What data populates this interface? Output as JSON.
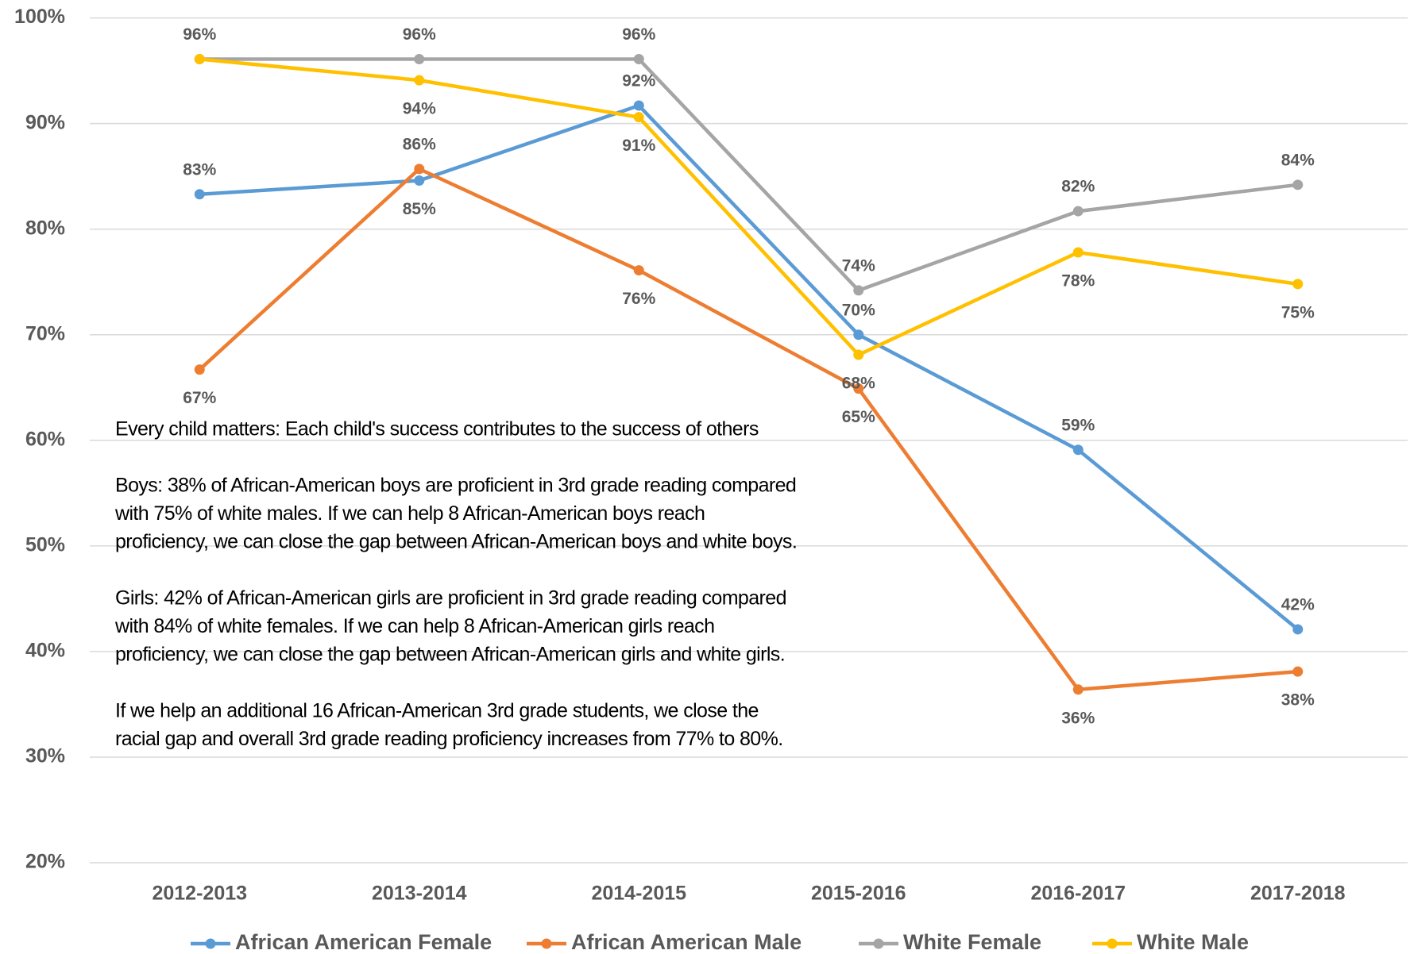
{
  "chart_data": {
    "type": "line",
    "categories": [
      "2012-2013",
      "2013-2014",
      "2014-2015",
      "2015-2016",
      "2016-2017",
      "2017-2018"
    ],
    "series": [
      {
        "name": "African American Female",
        "color": "#5b9bd5",
        "values": [
          83.3,
          84.6,
          91.7,
          70.0,
          59.1,
          42.1
        ],
        "value_labels": [
          "83%",
          "85%",
          "92%",
          "70%",
          "59%",
          "42%"
        ]
      },
      {
        "name": "African American Male",
        "color": "#ed7d31",
        "values": [
          66.7,
          85.7,
          76.1,
          64.9,
          36.4,
          38.1
        ],
        "value_labels": [
          "67%",
          "86%",
          "76%",
          "65%",
          "36%",
          "38%"
        ]
      },
      {
        "name": "White Female",
        "color": "#a5a5a5",
        "values": [
          96.1,
          96.1,
          96.1,
          74.2,
          81.7,
          84.2
        ],
        "value_labels": [
          "96%",
          "96%",
          "96%",
          "74%",
          "82%",
          "84%"
        ]
      },
      {
        "name": "White Male",
        "color": "#ffc000",
        "values": [
          96.1,
          94.1,
          90.6,
          68.1,
          77.8,
          74.8
        ],
        "value_labels": [
          null,
          "94%",
          "91%",
          "68%",
          "78%",
          "75%"
        ]
      }
    ],
    "ylim": [
      20,
      100
    ],
    "yticks": [
      {
        "value": 20,
        "label": "20%"
      },
      {
        "value": 30,
        "label": "30%"
      },
      {
        "value": 40,
        "label": "40%"
      },
      {
        "value": 50,
        "label": "50%"
      },
      {
        "value": 60,
        "label": "60%"
      },
      {
        "value": 70,
        "label": "70%"
      },
      {
        "value": 80,
        "label": "80%"
      },
      {
        "value": 90,
        "label": "90%"
      },
      {
        "value": 100,
        "label": "100%"
      }
    ],
    "grid": true,
    "legend": "bottom",
    "annotation": [
      [
        "Every child matters: Each child's success contributes to the success of others"
      ],
      [
        "Boys: 38% of African-American boys are proficient in 3rd grade reading compared",
        "with 75% of white males. If we can help 8 African-American boys reach",
        "proficiency, we can close the gap between African-American boys and white boys."
      ],
      [
        "Girls: 42% of African-American girls are proficient in 3rd grade reading compared",
        "with 84% of white females. If we can help 8 African-American girls reach",
        "proficiency, we can close the gap between African-American girls and white girls."
      ],
      [
        "If we help an additional 16 African-American 3rd grade students, we close the",
        "racial gap and overall 3rd grade reading proficiency increases from 77% to 80%."
      ]
    ]
  }
}
